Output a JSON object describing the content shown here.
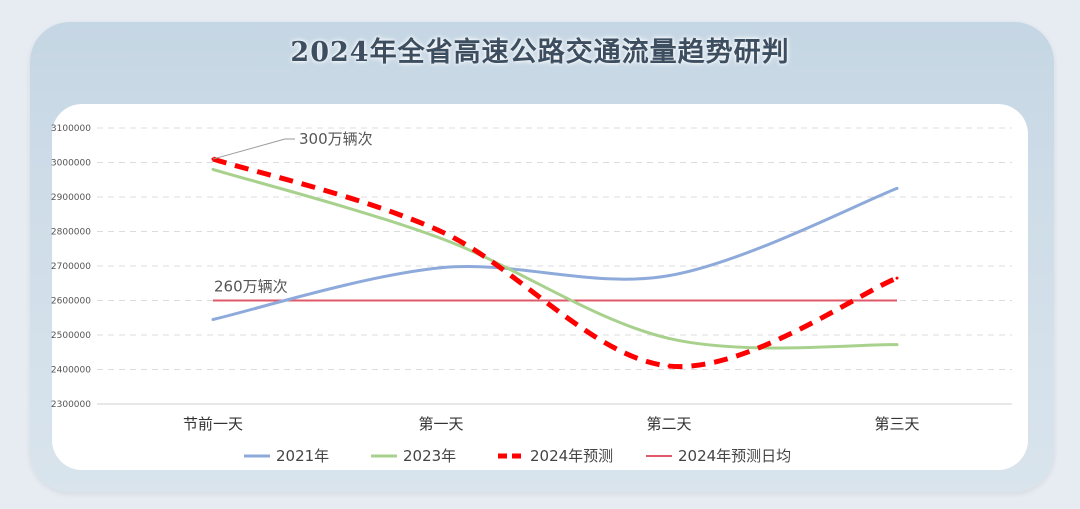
{
  "title": "2024年全省高速公路交通流量趋势研判",
  "chart_data": {
    "type": "line",
    "categories": [
      "节前一天",
      "第一天",
      "第二天",
      "第三天"
    ],
    "ylim": [
      2300000,
      3100000
    ],
    "yticks": [
      2300000,
      2400000,
      2500000,
      2600000,
      2700000,
      2800000,
      2900000,
      3000000,
      3100000
    ],
    "grid": true,
    "legend_position": "bottom",
    "series": [
      {
        "name": "2021年",
        "values": [
          2545000,
          2695000,
          2672000,
          2925000
        ],
        "color": "#8eaadb",
        "style": "smooth"
      },
      {
        "name": "2023年",
        "values": [
          2980000,
          2780000,
          2490000,
          2472000
        ],
        "color": "#a9d18e",
        "style": "smooth"
      },
      {
        "name": "2024年预测",
        "values": [
          3010000,
          2800000,
          2410000,
          2665000
        ],
        "color": "#ff0000",
        "style": "dashed-smooth"
      },
      {
        "name": "2024年预测日均",
        "values": [
          2600000,
          2600000,
          2600000,
          2600000
        ],
        "color": "#e05a6a",
        "style": "straight"
      }
    ],
    "annotations": [
      {
        "text": "300万辆次"
      },
      {
        "text": "260万辆次"
      }
    ]
  }
}
